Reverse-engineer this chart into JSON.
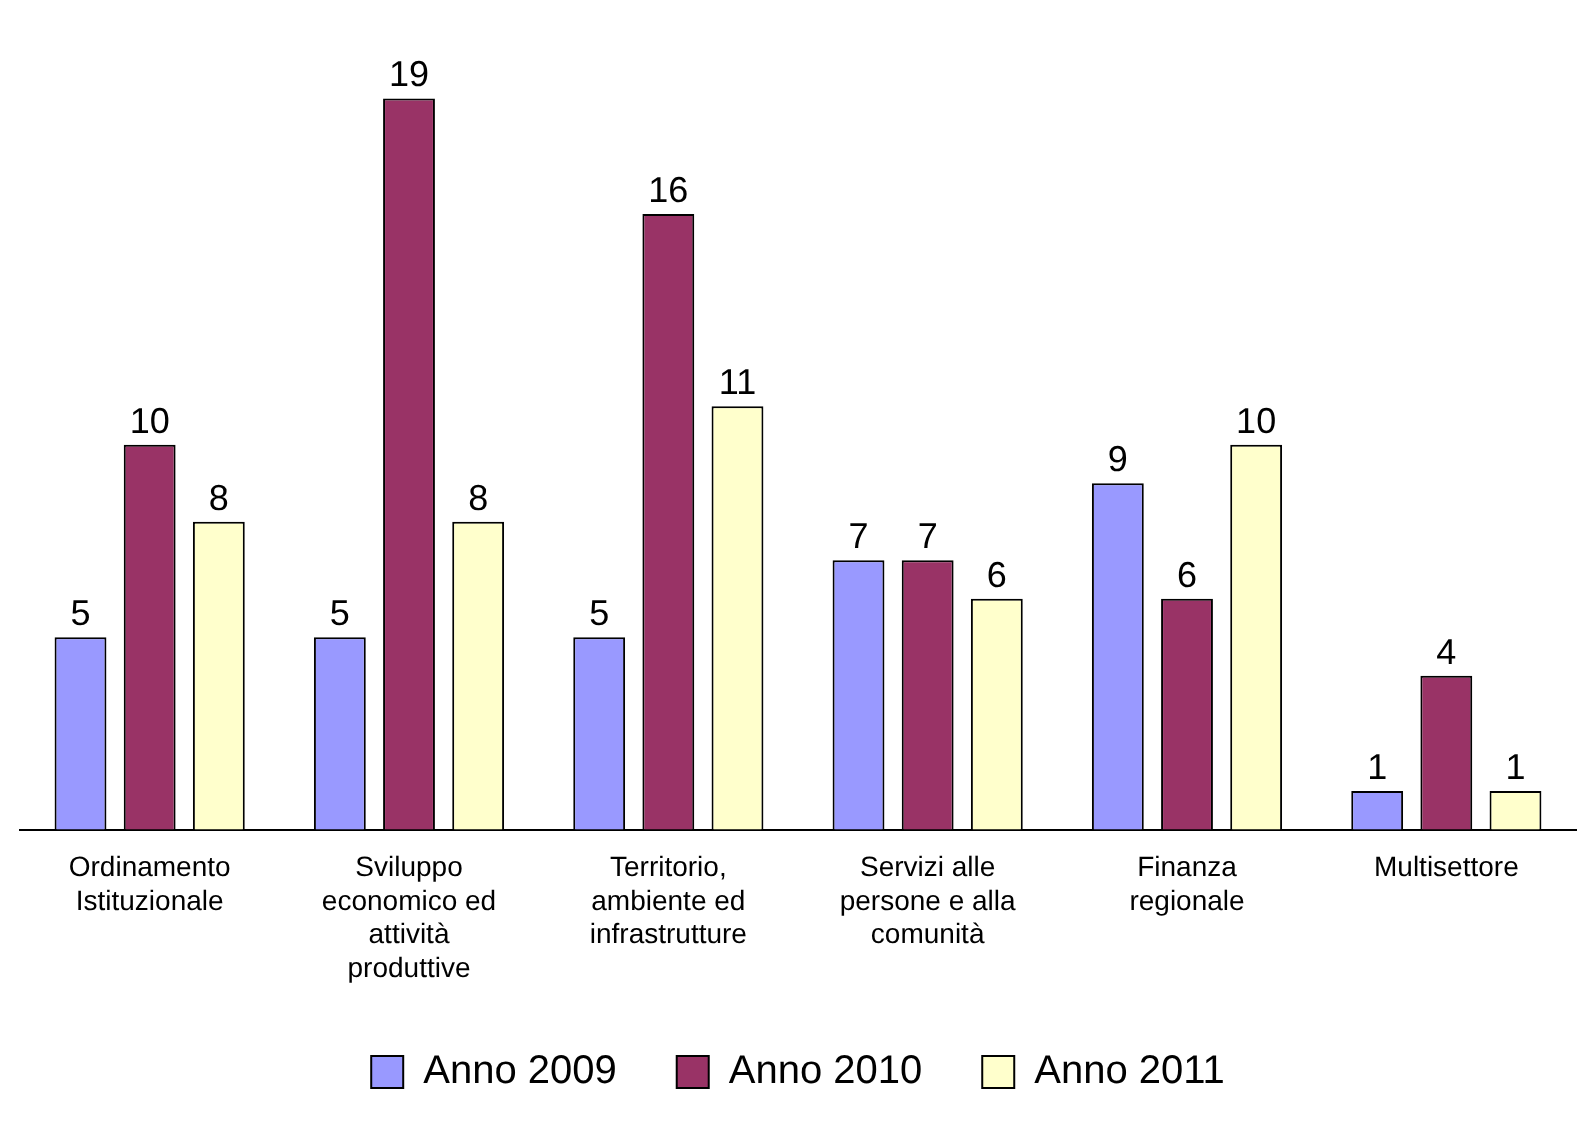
{
  "chart_data": {
    "type": "bar",
    "categories": [
      "Ordinamento Istituzionale",
      "Sviluppo economico ed attività produttive",
      "Territorio, ambiente ed infrastrutture",
      "Servizi alle persone e alla comunità",
      "Finanza regionale",
      "Multisettore"
    ],
    "series": [
      {
        "name": "Anno 2009",
        "color": "#9999ff",
        "values": [
          5,
          5,
          5,
          7,
          9,
          1
        ]
      },
      {
        "name": "Anno 2010",
        "color": "#993366",
        "values": [
          10,
          19,
          16,
          7,
          6,
          4
        ]
      },
      {
        "name": "Anno 2011",
        "color": "#ffffcc",
        "values": [
          8,
          8,
          11,
          6,
          10,
          1
        ]
      }
    ],
    "data_labels": true,
    "legend": "bottom",
    "grid": false,
    "tick_labels": "x"
  }
}
